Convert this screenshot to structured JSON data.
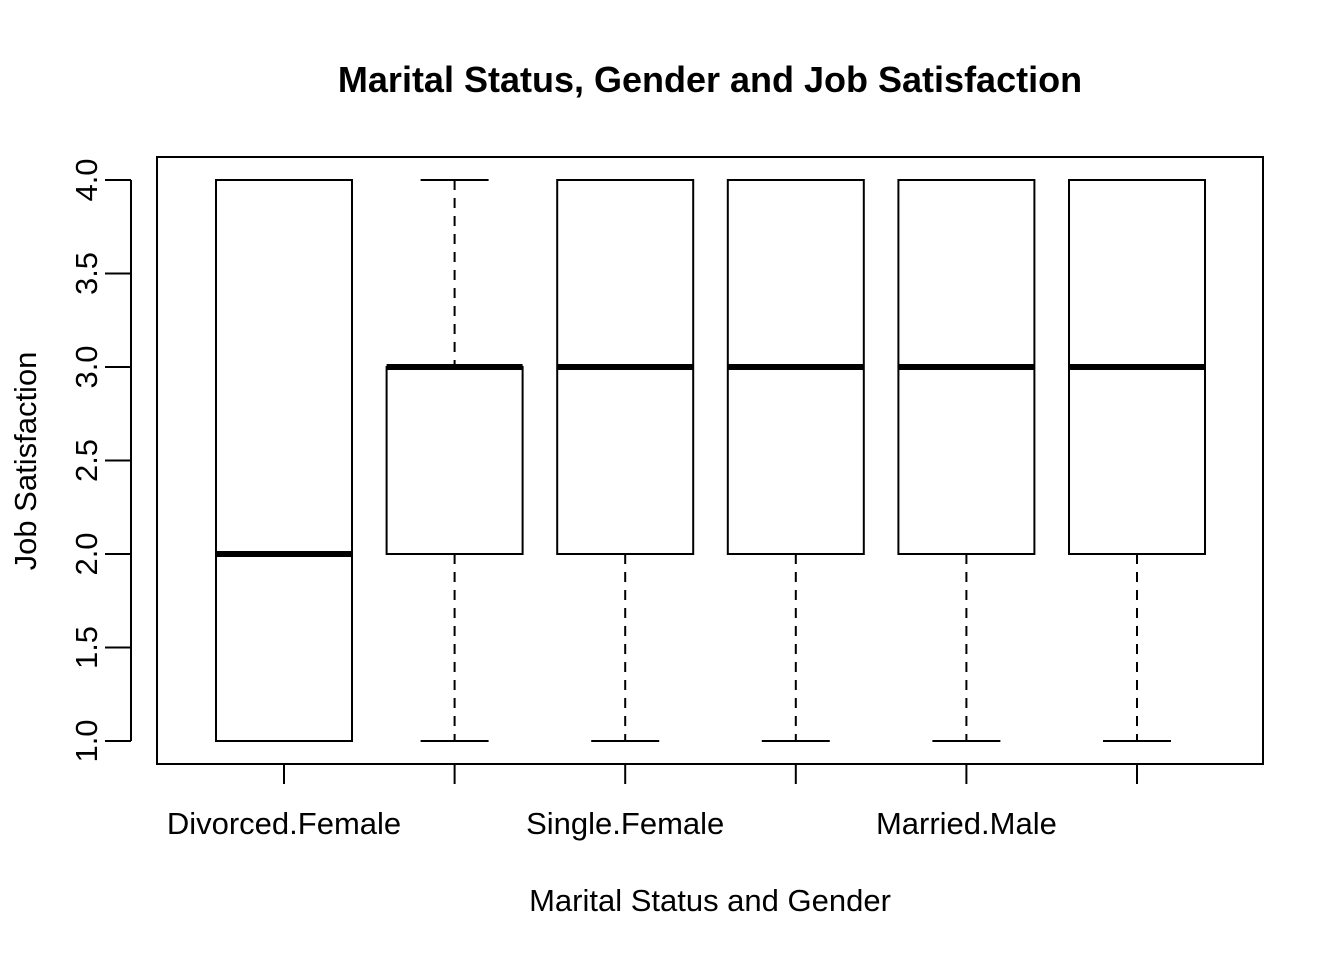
{
  "chart_data": {
    "type": "boxplot",
    "title": "Marital Status, Gender and Job Satisfaction",
    "xlabel": "Marital Status and Gender",
    "ylabel": "Job Satisfaction",
    "ylim": [
      1.0,
      4.0
    ],
    "y_ticks": [
      "1.0",
      "1.5",
      "2.0",
      "2.5",
      "3.0",
      "3.5",
      "4.0"
    ],
    "x_tick_labels_shown": [
      "Divorced.Female",
      "",
      "Single.Female",
      "",
      "Married.Male",
      ""
    ],
    "grid": false,
    "boxes": [
      {
        "whisker_low": 1.0,
        "q1": 1.0,
        "median": 2.0,
        "q3": 4.0,
        "whisker_high": 4.0
      },
      {
        "whisker_low": 1.0,
        "q1": 2.0,
        "median": 3.0,
        "q3": 3.0,
        "whisker_high": 4.0
      },
      {
        "whisker_low": 1.0,
        "q1": 2.0,
        "median": 3.0,
        "q3": 4.0,
        "whisker_high": 4.0
      },
      {
        "whisker_low": 1.0,
        "q1": 2.0,
        "median": 3.0,
        "q3": 4.0,
        "whisker_high": 4.0
      },
      {
        "whisker_low": 1.0,
        "q1": 2.0,
        "median": 3.0,
        "q3": 4.0,
        "whisker_high": 4.0
      },
      {
        "whisker_low": 1.0,
        "q1": 2.0,
        "median": 3.0,
        "q3": 4.0,
        "whisker_high": 4.0
      }
    ]
  }
}
